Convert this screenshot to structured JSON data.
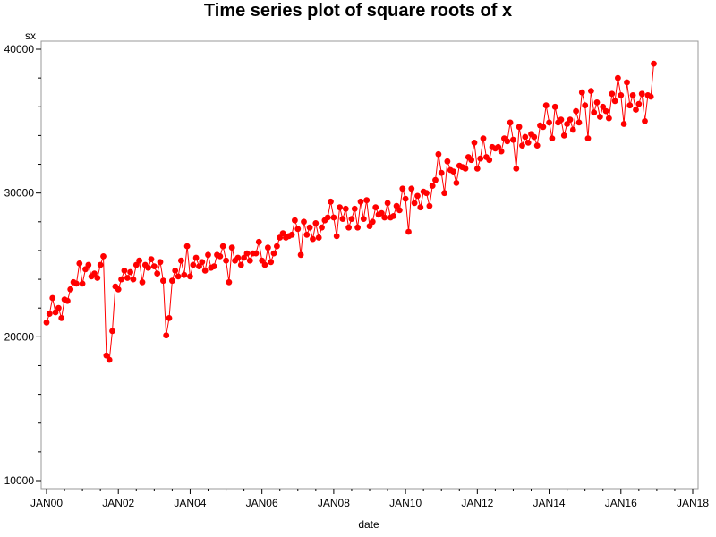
{
  "chart_data": {
    "type": "line",
    "title": "Time series plot of square roots of x",
    "xlabel": "date",
    "ylabel": "sx",
    "xlim": [
      "2000-01",
      "2018-01"
    ],
    "ylim": [
      10000,
      40000
    ],
    "x_ticks": [
      "JAN00",
      "JAN02",
      "JAN04",
      "JAN06",
      "JAN08",
      "JAN10",
      "JAN12",
      "JAN14",
      "JAN16",
      "JAN18"
    ],
    "y_ticks": [
      "10000",
      "20000",
      "30000",
      "40000"
    ],
    "grid": false,
    "marker": "circle",
    "colors": {
      "series": "#ff0000",
      "frame": "#9a9a9a",
      "axis": "#000000"
    },
    "series": [
      {
        "start": "2000-01",
        "frequency": "monthly",
        "values": [
          21000,
          21600,
          22700,
          21700,
          22000,
          21300,
          22600,
          22500,
          23300,
          23800,
          23700,
          25100,
          23700,
          24700,
          25000,
          24200,
          24400,
          24100,
          25000,
          25600,
          18700,
          18400,
          20400,
          23500,
          23300,
          24000,
          24600,
          24100,
          24500,
          24000,
          25000,
          25300,
          23800,
          25000,
          24800,
          25400,
          24900,
          24400,
          25200,
          23900,
          20100,
          21300,
          23900,
          24600,
          24200,
          25300,
          24300,
          26300,
          24200,
          25000,
          25500,
          24900,
          25200,
          24600,
          25700,
          24800,
          24900,
          25700,
          25600,
          26300,
          25300,
          23800,
          26200,
          25300,
          25500,
          25000,
          25500,
          25800,
          25300,
          25800,
          25800,
          26600,
          25300,
          25000,
          26200,
          25200,
          25800,
          26300,
          26900,
          27200,
          26900,
          27000,
          27100,
          28100,
          27500,
          25700,
          28000,
          27100,
          27600,
          26800,
          27900,
          26900,
          27600,
          28100,
          28300,
          29400,
          28300,
          27000,
          29000,
          28200,
          28900,
          27600,
          28200,
          28900,
          27600,
          29400,
          28200,
          29500,
          27700,
          28000,
          29000,
          28500,
          28600,
          28300,
          29300,
          28300,
          28400,
          29100,
          28800,
          30300,
          29600,
          27300,
          30300,
          29300,
          29800,
          29000,
          30100,
          30000,
          29100,
          30500,
          30900,
          32700,
          31400,
          30000,
          32200,
          31600,
          31500,
          30700,
          31900,
          31800,
          31700,
          32500,
          32300,
          33500,
          31700,
          32400,
          33800,
          32500,
          32300,
          33200,
          33100,
          33200,
          32900,
          33800,
          33600,
          34900,
          33700,
          31700,
          34600,
          33300,
          33900,
          33500,
          34100,
          33900,
          33300,
          34700,
          34600,
          36100,
          34900,
          33800,
          36000,
          34900,
          35100,
          34000,
          34800,
          35100,
          34400,
          35700,
          34900,
          37000,
          36100,
          33800,
          37100,
          35600,
          36300,
          35300,
          36000,
          35700,
          35200,
          36900,
          36400,
          38000,
          36800,
          34800,
          37700,
          36100,
          36800,
          35800,
          36200,
          36900,
          35000,
          36800,
          36700,
          39000
        ]
      }
    ]
  }
}
